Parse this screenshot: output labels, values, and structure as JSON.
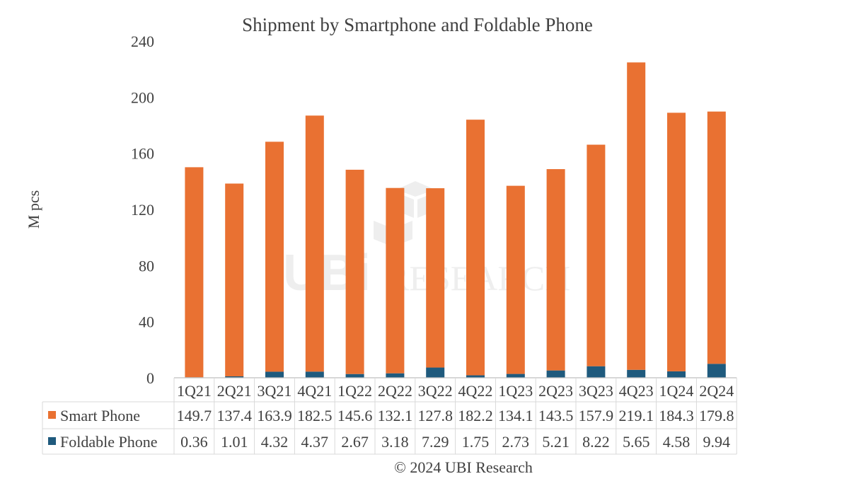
{
  "chart_data": {
    "type": "bar",
    "stacked": true,
    "title": "Shipment by Smartphone and Foldable Phone",
    "ylabel": "M pcs",
    "ylim": [
      0,
      240
    ],
    "yticks": [
      "0",
      "40",
      "80",
      "120",
      "160",
      "200",
      "240"
    ],
    "categories": [
      "1Q21",
      "2Q21",
      "3Q21",
      "4Q21",
      "1Q22",
      "2Q22",
      "3Q22",
      "4Q22",
      "1Q23",
      "2Q23",
      "3Q23",
      "4Q23",
      "1Q24",
      "2Q24"
    ],
    "series": [
      {
        "name": "Foldable Phone",
        "color": "#1f5a7d",
        "values": [
          0.36,
          1.01,
          4.32,
          4.37,
          2.67,
          3.18,
          7.29,
          1.75,
          2.73,
          5.21,
          8.22,
          5.65,
          4.58,
          9.94
        ]
      },
      {
        "name": "Smart Phone",
        "color": "#e97132",
        "values": [
          149.7,
          137.4,
          163.9,
          182.5,
          145.6,
          132.1,
          127.8,
          182.2,
          134.1,
          143.5,
          157.9,
          219.1,
          184.3,
          179.8
        ]
      }
    ],
    "data_table": {
      "rows": [
        {
          "label": "Smart Phone",
          "color": "#e97132",
          "cells": [
            "149.7",
            "137.4",
            "163.9",
            "182.5",
            "145.6",
            "132.1",
            "127.8",
            "182.2",
            "134.1",
            "143.5",
            "157.9",
            "219.1",
            "184.3",
            "179.8"
          ]
        },
        {
          "label": "Foldable Phone",
          "color": "#1f5a7d",
          "cells": [
            "0.36",
            "1.01",
            "4.32",
            "4.37",
            "2.67",
            "3.18",
            "7.29",
            "1.75",
            "2.73",
            "5.21",
            "8.22",
            "5.65",
            "4.58",
            "9.94"
          ]
        }
      ]
    },
    "legend": "in data table",
    "grid": false
  },
  "watermark": {
    "logo_text": "UBi",
    "text": "RESEARCH"
  },
  "footer": {
    "text": "© 2024 UBI Research"
  }
}
